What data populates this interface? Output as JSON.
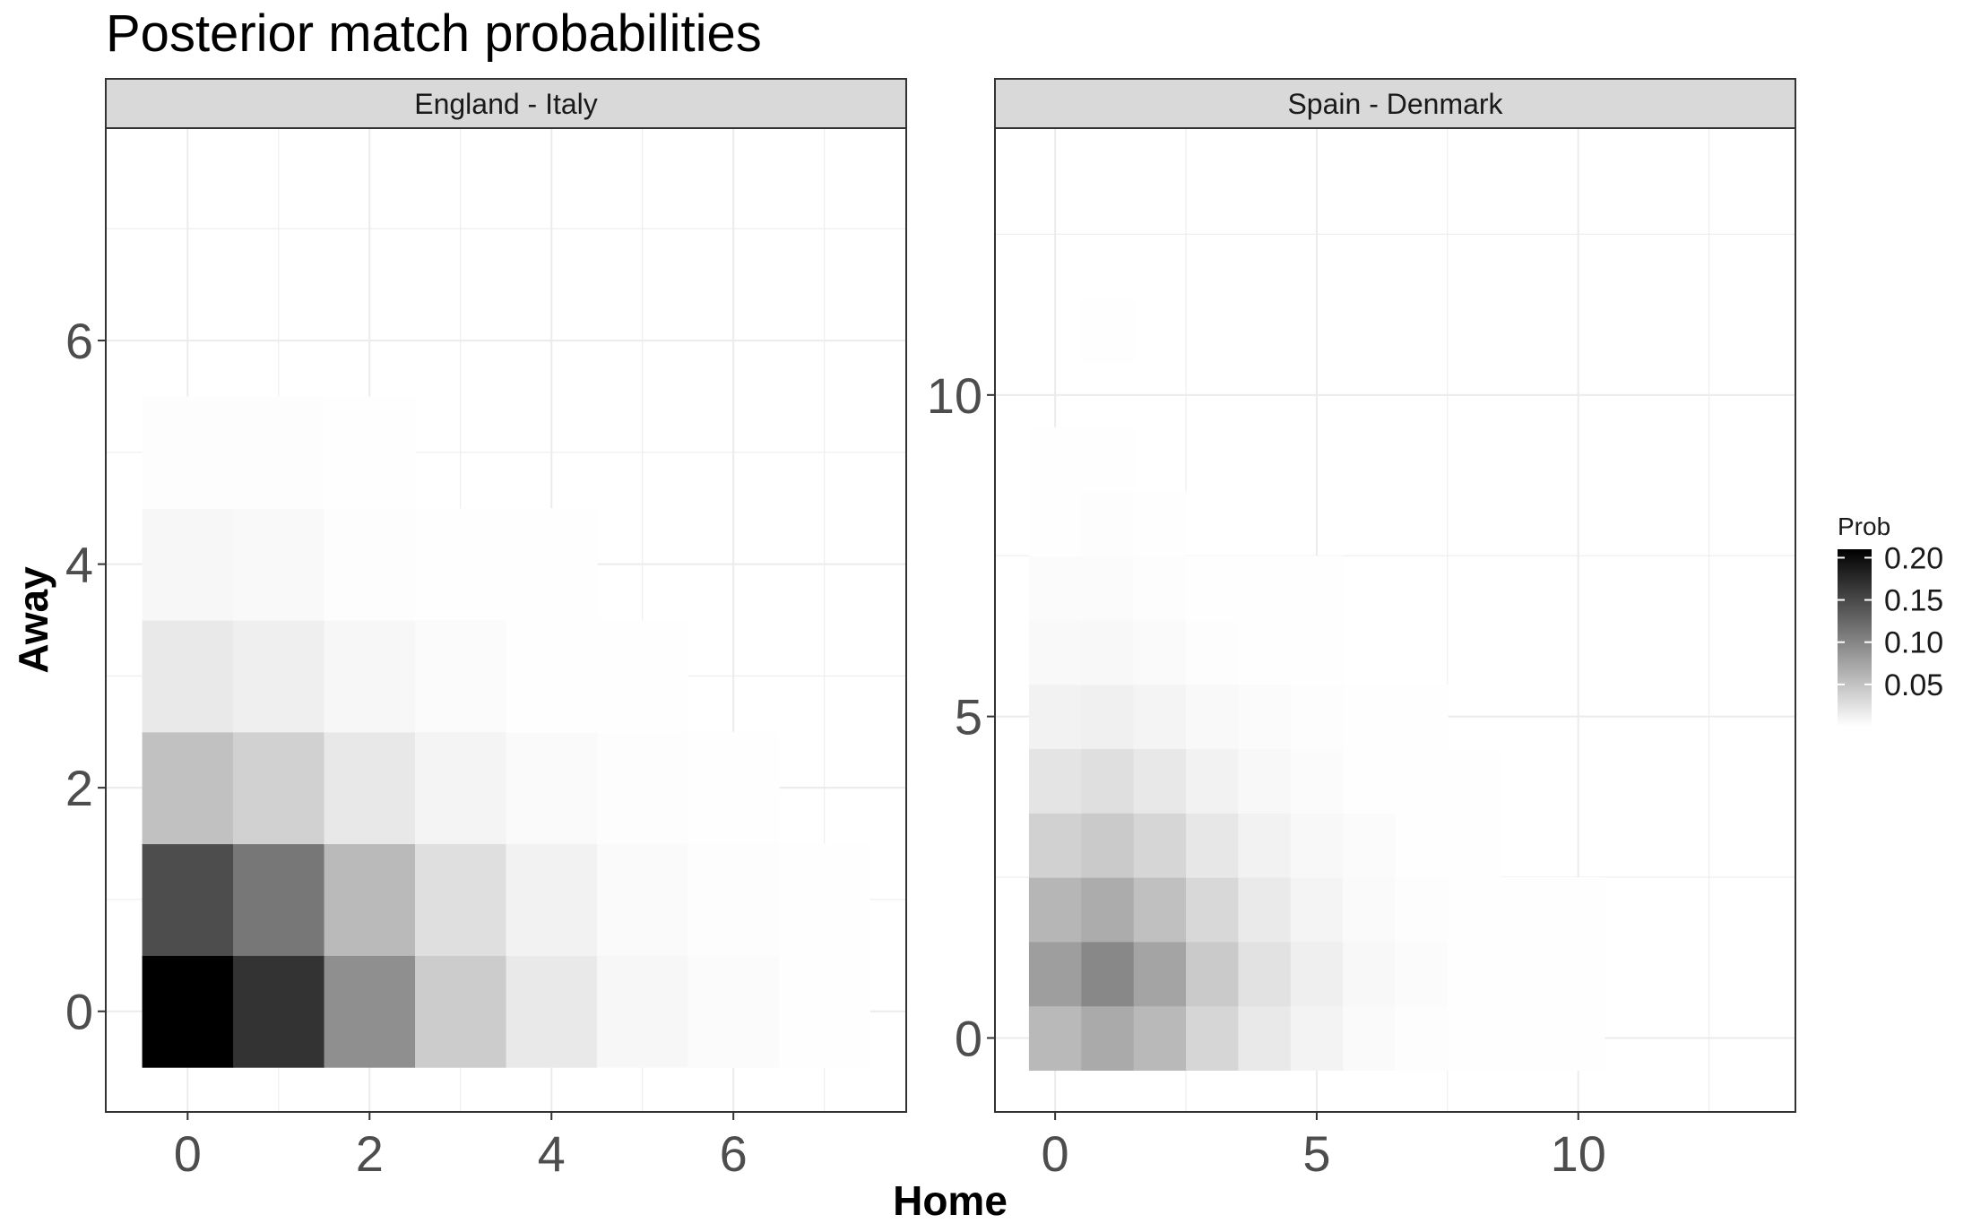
{
  "title": "Posterior match probabilities",
  "chart_data": {
    "type": "heatmap",
    "title": "Posterior match probabilities",
    "xlabel": "Home",
    "ylabel": "Away",
    "grid": true,
    "colors": {
      "low": "#ffffff",
      "high": "#000000",
      "strip_fill": "#d9d9d9",
      "grid": "#ebebeb"
    },
    "legend": {
      "title": "Prob",
      "position": "right",
      "breaks": [
        0.05,
        0.1,
        0.15,
        0.2
      ],
      "labels": [
        "0.05",
        "0.10",
        "0.15",
        "0.20"
      ],
      "limits": [
        0,
        0.21
      ]
    },
    "panels": [
      {
        "label": "England - Italy",
        "xlim": [
          -0.9,
          7.9
        ],
        "ylim": [
          -0.9,
          7.9
        ],
        "xticks": [
          0,
          2,
          4,
          6
        ],
        "yticks": [
          0,
          2,
          4,
          6
        ],
        "cells": [
          [
            0,
            0,
            0.21
          ],
          [
            1,
            0,
            0.168
          ],
          [
            2,
            0,
            0.092
          ],
          [
            3,
            0,
            0.042
          ],
          [
            4,
            0,
            0.018
          ],
          [
            5,
            0,
            0.007
          ],
          [
            6,
            0,
            0.003
          ],
          [
            7,
            0,
            0.001
          ],
          [
            0,
            1,
            0.147
          ],
          [
            1,
            1,
            0.112
          ],
          [
            2,
            1,
            0.057
          ],
          [
            3,
            1,
            0.026
          ],
          [
            4,
            1,
            0.011
          ],
          [
            5,
            1,
            0.004
          ],
          [
            6,
            1,
            0.002
          ],
          [
            7,
            1,
            0.001
          ],
          [
            0,
            2,
            0.051
          ],
          [
            1,
            2,
            0.038
          ],
          [
            2,
            2,
            0.019
          ],
          [
            3,
            2,
            0.009
          ],
          [
            4,
            2,
            0.004
          ],
          [
            5,
            2,
            0.002
          ],
          [
            6,
            2,
            0.001
          ],
          [
            0,
            3,
            0.018
          ],
          [
            1,
            3,
            0.013
          ],
          [
            2,
            3,
            0.007
          ],
          [
            3,
            3,
            0.003
          ],
          [
            4,
            3,
            0.001
          ],
          [
            5,
            3,
            0.001
          ],
          [
            0,
            4,
            0.007
          ],
          [
            1,
            4,
            0.005
          ],
          [
            2,
            4,
            0.002
          ],
          [
            3,
            4,
            0.001
          ],
          [
            4,
            4,
            0.0005
          ],
          [
            0,
            5,
            0.002
          ],
          [
            1,
            5,
            0.002
          ],
          [
            2,
            5,
            0.001
          ]
        ]
      },
      {
        "label": "Spain - Denmark",
        "xlim": [
          -1.15,
          14.15
        ],
        "ylim": [
          -1.15,
          14.15
        ],
        "xticks": [
          0,
          5,
          10
        ],
        "yticks": [
          0,
          5,
          10
        ],
        "cells": [
          [
            0,
            0,
            0.058
          ],
          [
            1,
            0,
            0.07
          ],
          [
            2,
            0,
            0.058
          ],
          [
            3,
            0,
            0.034
          ],
          [
            4,
            0,
            0.018
          ],
          [
            5,
            0,
            0.01
          ],
          [
            6,
            0,
            0.004
          ],
          [
            7,
            0,
            0.002
          ],
          [
            8,
            0,
            0.001
          ],
          [
            9,
            0,
            0.0005
          ],
          [
            10,
            0,
            0.0005
          ],
          [
            0,
            1,
            0.08
          ],
          [
            1,
            1,
            0.098
          ],
          [
            2,
            1,
            0.075
          ],
          [
            3,
            1,
            0.044
          ],
          [
            4,
            1,
            0.024
          ],
          [
            5,
            1,
            0.013
          ],
          [
            6,
            1,
            0.006
          ],
          [
            7,
            1,
            0.003
          ],
          [
            8,
            1,
            0.001
          ],
          [
            9,
            1,
            0.0005
          ],
          [
            10,
            1,
            0.0005
          ],
          [
            0,
            2,
            0.06
          ],
          [
            1,
            2,
            0.068
          ],
          [
            2,
            2,
            0.052
          ],
          [
            3,
            2,
            0.032
          ],
          [
            4,
            2,
            0.017
          ],
          [
            5,
            2,
            0.009
          ],
          [
            6,
            2,
            0.004
          ],
          [
            7,
            2,
            0.002
          ],
          [
            8,
            2,
            0.001
          ],
          [
            9,
            2,
            0.0005
          ],
          [
            10,
            2,
            0.0005
          ],
          [
            0,
            3,
            0.038
          ],
          [
            1,
            3,
            0.044
          ],
          [
            2,
            3,
            0.034
          ],
          [
            3,
            3,
            0.02
          ],
          [
            4,
            3,
            0.011
          ],
          [
            5,
            3,
            0.006
          ],
          [
            6,
            3,
            0.003
          ],
          [
            7,
            3,
            0.001
          ],
          [
            8,
            3,
            0.0005
          ],
          [
            0,
            4,
            0.022
          ],
          [
            1,
            4,
            0.026
          ],
          [
            2,
            4,
            0.019
          ],
          [
            3,
            4,
            0.011
          ],
          [
            4,
            4,
            0.006
          ],
          [
            5,
            4,
            0.003
          ],
          [
            6,
            4,
            0.001
          ],
          [
            7,
            4,
            0.0005
          ],
          [
            8,
            4,
            0.0005
          ],
          [
            0,
            5,
            0.011
          ],
          [
            1,
            5,
            0.012
          ],
          [
            2,
            5,
            0.009
          ],
          [
            3,
            5,
            0.005
          ],
          [
            4,
            5,
            0.003
          ],
          [
            5,
            5,
            0.002
          ],
          [
            6,
            5,
            0.001
          ],
          [
            7,
            5,
            0.0005
          ],
          [
            0,
            6,
            0.005
          ],
          [
            1,
            6,
            0.006
          ],
          [
            2,
            6,
            0.004
          ],
          [
            3,
            6,
            0.002
          ],
          [
            4,
            6,
            0.001
          ],
          [
            5,
            6,
            0.0005
          ],
          [
            0,
            7,
            0.003
          ],
          [
            1,
            7,
            0.003
          ],
          [
            2,
            7,
            0.002
          ],
          [
            3,
            7,
            0.001
          ],
          [
            4,
            7,
            0.0005
          ],
          [
            5,
            7,
            0.0005
          ],
          [
            0,
            8,
            0.001
          ],
          [
            1,
            8,
            0.0015
          ],
          [
            2,
            8,
            0.001
          ],
          [
            0,
            9,
            0.0005
          ],
          [
            1,
            9,
            0.001
          ],
          [
            1,
            11,
            0.0005
          ]
        ]
      }
    ]
  }
}
